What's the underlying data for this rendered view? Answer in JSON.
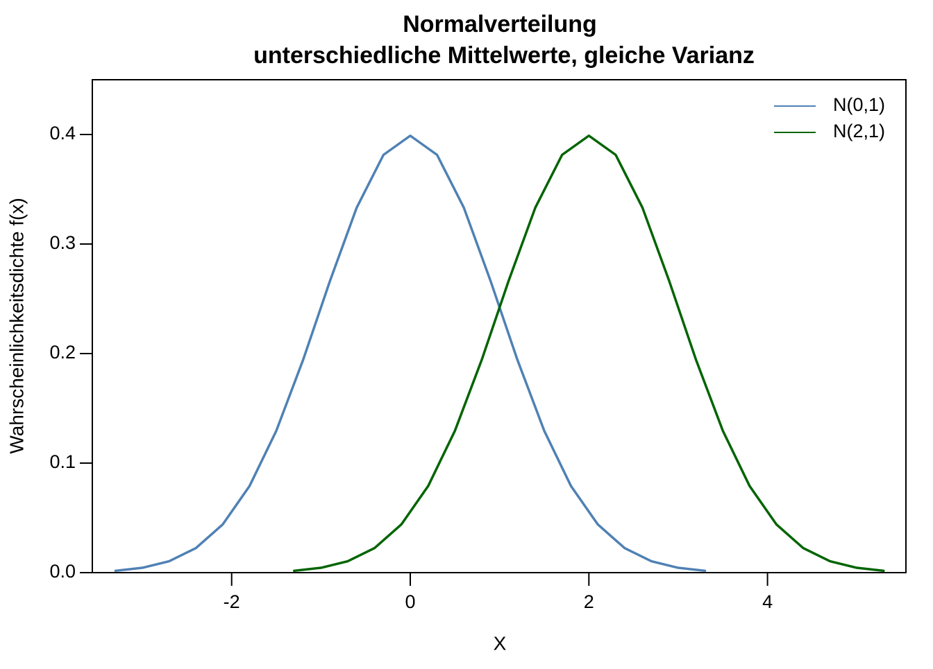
{
  "chart_data": {
    "type": "line",
    "title": "Normalverteilung",
    "subtitle": "unterschiedliche Mittelwerte, gleiche Varianz",
    "x_label": "X",
    "y_label": "Wahrscheinlichkeitsdichte f(x)",
    "series": [
      {
        "name": "N(0,1)",
        "color": "#4f81b4",
        "x": [
          -3.3,
          -3.0,
          -2.7,
          -2.4,
          -2.1,
          -1.8,
          -1.5,
          -1.2,
          -0.9,
          -0.6,
          -0.3,
          0,
          0.3,
          0.6,
          0.9,
          1.2,
          1.5,
          1.8,
          2.1,
          2.4,
          2.7,
          3.0,
          3.3
        ],
        "values": [
          0.0017,
          0.0044,
          0.0104,
          0.0224,
          0.044,
          0.079,
          0.1295,
          0.1942,
          0.2661,
          0.3332,
          0.3814,
          0.3989,
          0.3814,
          0.3332,
          0.2661,
          0.1942,
          0.1295,
          0.079,
          0.044,
          0.0224,
          0.0104,
          0.0044,
          0.0017
        ]
      },
      {
        "name": "N(2,1)",
        "color": "#006400",
        "x": [
          -1.3,
          -1.0,
          -0.7,
          -0.4,
          -0.1,
          0.2,
          0.5,
          0.8,
          1.1,
          1.4,
          1.7,
          2,
          2.3,
          2.6,
          2.9,
          3.2,
          3.5,
          3.8,
          4.1,
          4.4,
          4.7,
          5.0,
          5.3
        ],
        "values": [
          0.0017,
          0.0044,
          0.0104,
          0.0224,
          0.044,
          0.079,
          0.1295,
          0.1942,
          0.2661,
          0.3332,
          0.3814,
          0.3989,
          0.3814,
          0.3332,
          0.2661,
          0.1942,
          0.1295,
          0.079,
          0.044,
          0.0224,
          0.0104,
          0.0044,
          0.0017
        ]
      }
    ],
    "xlim": [
      -3.56,
      5.55
    ],
    "ylim": [
      0,
      0.45
    ],
    "xticks": [
      -2,
      0,
      2,
      4
    ],
    "yticks": [
      {
        "value": 0,
        "label": "0.0"
      },
      0.1,
      0.2,
      0.3,
      0.4
    ],
    "legend": "top-right",
    "grid": false
  }
}
